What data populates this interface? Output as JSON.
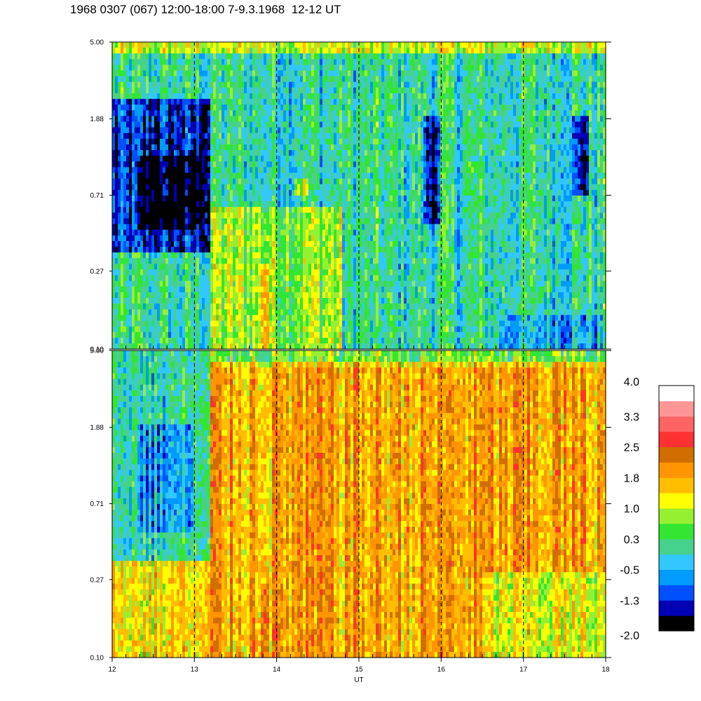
{
  "title": "1968 0307 (067) 12:00-18:00 7-9.3.1968  12-12 UT",
  "chart_data": {
    "type": "heatmap",
    "title": "1968 0307 (067) 12:00-18:00 7-9.3.1968  12-12 UT",
    "xlabel": "UT",
    "xlim": [
      12,
      18
    ],
    "x_ticks": [
      "12",
      "13",
      "14",
      "15",
      "16",
      "17",
      "18"
    ],
    "x_dashed_lines": [
      13,
      14,
      15,
      16,
      17
    ],
    "panels": [
      {
        "name": "upper",
        "y_scale": "log",
        "ylim": [
          0.1,
          5.0
        ],
        "y_ticks": [
          "0.10",
          "0.27",
          "0.71",
          "1.88",
          "5.00"
        ],
        "regions": [
          {
            "x": [
              12.0,
              13.2
            ],
            "y": [
              0.35,
              2.5
            ],
            "level": -1.3
          },
          {
            "x": [
              12.3,
              13.1
            ],
            "y": [
              0.45,
              1.2
            ],
            "level": -2.0
          },
          {
            "x": [
              13.2,
              14.8
            ],
            "y": [
              0.1,
              0.6
            ],
            "level": 0.8
          },
          {
            "x": [
              14.2,
              14.4
            ],
            "y": [
              0.7,
              0.9
            ],
            "level": 1.0
          },
          {
            "x": [
              13.8,
              13.9
            ],
            "y": [
              0.1,
              0.3
            ],
            "level": 1.8
          },
          {
            "x": [
              15.8,
              16.0
            ],
            "y": [
              0.5,
              2.0
            ],
            "level": -1.3
          },
          {
            "x": [
              17.6,
              17.8
            ],
            "y": [
              0.7,
              2.0
            ],
            "level": -1.3
          },
          {
            "x": [
              16.7,
              18.0
            ],
            "y": [
              0.1,
              0.15
            ],
            "level": -0.5
          }
        ],
        "background_level": 0.0,
        "top_band_level": 1.0
      },
      {
        "name": "lower",
        "y_scale": "log",
        "ylim": [
          0.1,
          5.0
        ],
        "y_ticks": [
          "0.10",
          "0.27",
          "0.71",
          "1.88",
          "5.00"
        ],
        "regions": [
          {
            "x": [
              12.0,
              13.2
            ],
            "y": [
              0.35,
              5.0
            ],
            "level": 0.0
          },
          {
            "x": [
              12.3,
              13.0
            ],
            "y": [
              0.5,
              2.0
            ],
            "level": -0.6
          },
          {
            "x": [
              13.2,
              18.0
            ],
            "y": [
              0.1,
              4.0
            ],
            "level": 1.8
          },
          {
            "x": [
              13.8,
              13.9
            ],
            "y": [
              0.1,
              0.25
            ],
            "level": 2.6
          },
          {
            "x": [
              16.5,
              18.0
            ],
            "y": [
              0.1,
              0.3
            ],
            "level": 1.1
          }
        ],
        "background_level": 1.4,
        "top_band_level": 0.6
      }
    ],
    "colorbar": {
      "labels": [
        "4.0",
        "3.3",
        "2.5",
        "1.8",
        "1.0",
        "0.3",
        "-0.5",
        "-1.3",
        "-2.0"
      ],
      "min": -2.0,
      "max": 4.0,
      "colors": [
        "#000000",
        "#0000b4",
        "#0050ff",
        "#009bff",
        "#32c8ff",
        "#46d28c",
        "#32e632",
        "#96f032",
        "#ffff00",
        "#ffbe00",
        "#ff9600",
        "#d26e00",
        "#ff3232",
        "#ff6464",
        "#ff9696",
        "#ffffff"
      ]
    }
  }
}
